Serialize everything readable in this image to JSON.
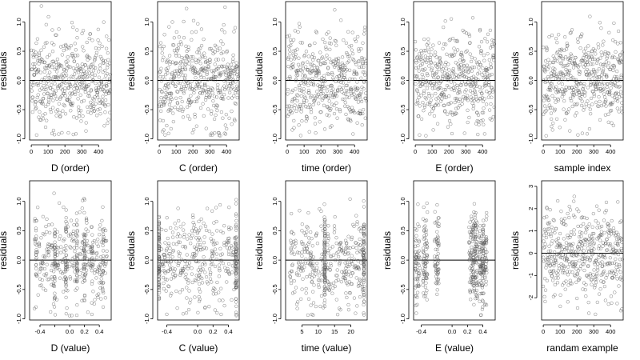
{
  "chart_data": [
    {
      "type": "scatter",
      "xlabel": "D (order)",
      "ylabel": "residuals",
      "xlim": [
        -10,
        475
      ],
      "ylim": [
        -1.02,
        1.35
      ],
      "xticks": [
        0,
        100,
        200,
        300,
        400
      ],
      "yticks": [
        -1.0,
        -0.5,
        0.0,
        0.5,
        1.0
      ],
      "ytick_labels": [
        "-1.0",
        "-0.5",
        "0.0",
        "0.5",
        "1.0"
      ],
      "hline": 0,
      "x_kind": "index",
      "n": 480,
      "points": "residuals vs observation order",
      "seed": 11
    },
    {
      "type": "scatter",
      "xlabel": "C (order)",
      "ylabel": "residuals",
      "xlim": [
        -10,
        475
      ],
      "ylim": [
        -1.02,
        1.35
      ],
      "xticks": [
        0,
        100,
        200,
        300,
        400
      ],
      "yticks": [
        -1.0,
        -0.5,
        0.0,
        0.5,
        1.0
      ],
      "ytick_labels": [
        "-1.0",
        "-0.5",
        "0.0",
        "0.5",
        "1.0"
      ],
      "hline": 0,
      "x_kind": "index",
      "n": 480,
      "seed": 23
    },
    {
      "type": "scatter",
      "xlabel": "time (order)",
      "ylabel": "residuals",
      "xlim": [
        -10,
        475
      ],
      "ylim": [
        -1.02,
        1.35
      ],
      "xticks": [
        0,
        100,
        200,
        300,
        400
      ],
      "yticks": [
        -1.0,
        -0.5,
        0.0,
        0.5,
        1.0
      ],
      "ytick_labels": [
        "-1.0",
        "-0.5",
        "0.0",
        "0.5",
        "1.0"
      ],
      "hline": 0,
      "x_kind": "index",
      "n": 480,
      "seed": 37
    },
    {
      "type": "scatter",
      "xlabel": "E (order)",
      "ylabel": "residuals",
      "xlim": [
        -10,
        475
      ],
      "ylim": [
        -1.02,
        1.35
      ],
      "xticks": [
        0,
        100,
        200,
        300,
        400
      ],
      "yticks": [
        -1.0,
        -0.5,
        0.0,
        0.5,
        1.0
      ],
      "ytick_labels": [
        "-1.0",
        "-0.5",
        "0.0",
        "0.5",
        "1.0"
      ],
      "hline": 0,
      "x_kind": "index",
      "n": 480,
      "seed": 41
    },
    {
      "type": "scatter",
      "xlabel": "sample index",
      "ylabel": "residuals",
      "xlim": [
        -10,
        475
      ],
      "ylim": [
        -1.02,
        1.35
      ],
      "xticks": [
        0,
        100,
        200,
        300,
        400
      ],
      "yticks": [
        -1.0,
        -0.5,
        0.0,
        0.5,
        1.0
      ],
      "ytick_labels": [
        "-1.0",
        "-0.5",
        "0.0",
        "0.5",
        "1.0"
      ],
      "hline": 0,
      "x_kind": "index",
      "n": 480,
      "seed": 53
    },
    {
      "type": "scatter",
      "xlabel": "D (value)",
      "ylabel": "residuals",
      "xlim": [
        -0.54,
        0.56
      ],
      "ylim": [
        -1.02,
        1.35
      ],
      "xticks": [
        -0.4,
        -0.2,
        0.0,
        0.2,
        0.4
      ],
      "xtick_labels": [
        "-0.4",
        "",
        "0.0",
        "0.2",
        "0.4"
      ],
      "yticks": [
        -1.0,
        -0.5,
        0.0,
        0.5,
        1.0
      ],
      "ytick_labels": [
        "-1.0",
        "-0.5",
        "0.0",
        "0.5",
        "1.0"
      ],
      "hline": 0,
      "x_kind": "continuous",
      "x_values": [
        -0.45,
        -0.2,
        -0.05,
        0.1,
        0.2,
        0.3,
        0.45
      ],
      "n": 480,
      "seed": 61
    },
    {
      "type": "scatter",
      "xlabel": "C (value)",
      "ylabel": "residuals",
      "xlim": [
        -0.52,
        0.54
      ],
      "ylim": [
        -1.02,
        1.35
      ],
      "xticks": [
        -0.4,
        0.0,
        0.2,
        0.4
      ],
      "xtick_labels": [
        "-0.4",
        "0.0",
        "0.2",
        "0.4"
      ],
      "yticks": [
        -1.0,
        -0.5,
        0.0,
        0.5,
        1.0
      ],
      "ytick_labels": [
        "-1.0",
        "-0.5",
        "0.0",
        "0.5",
        "1.0"
      ],
      "hline": 0,
      "x_kind": "continuous",
      "x_values": [
        -0.5,
        0.5
      ],
      "n": 480,
      "seed": 73
    },
    {
      "type": "scatter",
      "xlabel": "time (value)",
      "ylabel": "residuals",
      "xlim": [
        0,
        25
      ],
      "ylim": [
        -1.02,
        1.35
      ],
      "xticks": [
        5,
        10,
        15,
        20
      ],
      "xtick_labels": [
        "5",
        "10",
        "15",
        "20"
      ],
      "yticks": [
        -1.0,
        -0.5,
        0.0,
        0.5,
        1.0
      ],
      "ytick_labels": [
        "-1.0",
        "-0.5",
        "0.0",
        "0.5",
        "1.0"
      ],
      "hline": 0,
      "x_kind": "continuous",
      "x_values": [
        12,
        24
      ],
      "n": 480,
      "seed": 83
    },
    {
      "type": "scatter",
      "xlabel": "E (value)",
      "ylabel": "residuals",
      "xlim": [
        -0.5,
        0.56
      ],
      "ylim": [
        -1.02,
        1.35
      ],
      "xticks": [
        -0.4,
        0.0,
        0.2,
        0.4
      ],
      "xtick_labels": [
        "-0.4",
        "0.0",
        "0.2",
        "0.4"
      ],
      "yticks": [
        -1.0,
        -0.5,
        0.0,
        0.5,
        1.0
      ],
      "ytick_labels": [
        "-1.0",
        "-0.5",
        "0.0",
        "0.5",
        "1.0"
      ],
      "hline": 0,
      "x_kind": "clustered",
      "x_values": [
        -0.45,
        -0.35,
        -0.2,
        0.25,
        0.3,
        0.38,
        0.42
      ],
      "n": 480,
      "seed": 97
    },
    {
      "type": "scatter",
      "xlabel": "randam example",
      "ylabel": "residuals",
      "xlim": [
        -10,
        475
      ],
      "ylim": [
        -3.0,
        3.25
      ],
      "xticks": [
        0,
        100,
        200,
        300,
        400
      ],
      "yticks": [
        -2,
        -1,
        0,
        1,
        2,
        3
      ],
      "ytick_labels": [
        "-2",
        "-1",
        "0",
        "1",
        "2",
        "3"
      ],
      "hline": 0,
      "x_kind": "index",
      "sd": 1,
      "n": 480,
      "seed": 101
    }
  ]
}
